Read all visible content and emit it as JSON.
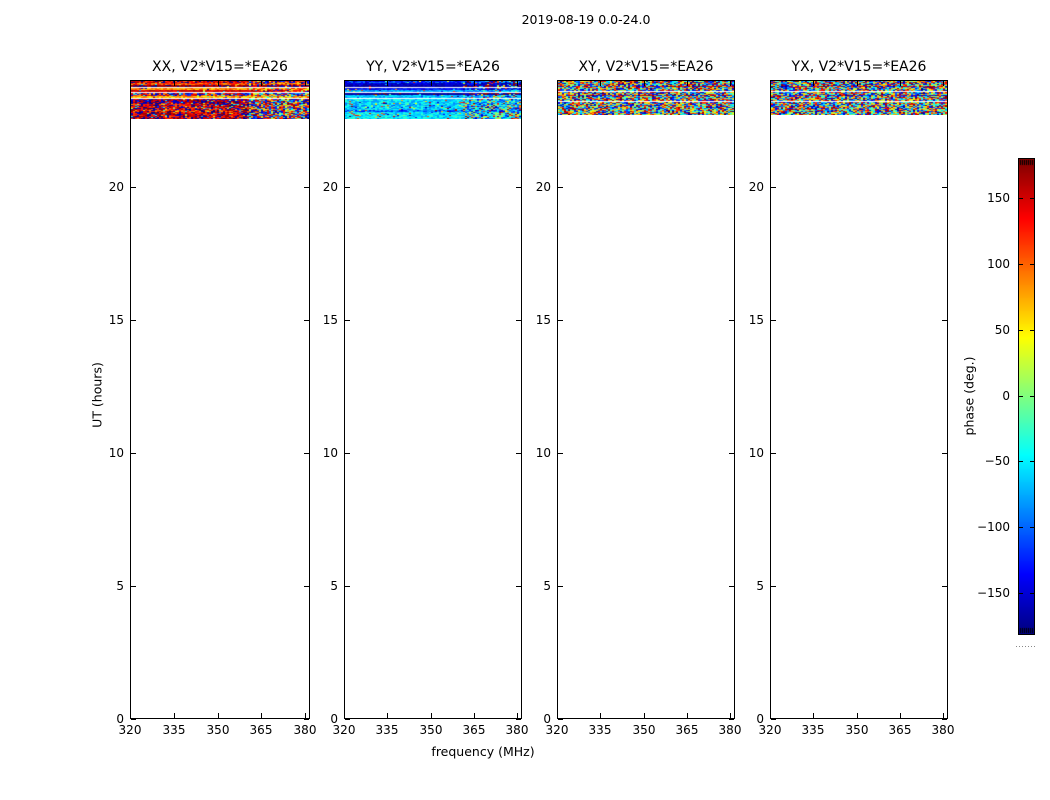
{
  "figure": {
    "title": "2019-08-19 0.0-24.0"
  },
  "axes": {
    "xlabel": "frequency (MHz)",
    "ylabel": "UT (hours)",
    "x_tick_labels": [
      "320",
      "335",
      "350",
      "365",
      "380"
    ],
    "y_tick_labels": [
      "0",
      "5",
      "10",
      "15",
      "20"
    ]
  },
  "colorbar": {
    "label": "phase (deg.)",
    "tick_labels": [
      "150",
      "100",
      "50",
      "0",
      "−50",
      "−100",
      "−150"
    ],
    "tick_values": [
      150,
      100,
      50,
      0,
      -50,
      -100,
      -150
    ],
    "range_deg": [
      -180,
      180
    ],
    "colormap": "jet",
    "key_colors": {
      "plus180": "#800000",
      "plus150": "#d40000",
      "plus100": "#ff6300",
      "plus50": "#ffef00",
      "zero": "#80ff80",
      "minus50": "#00efff",
      "minus100": "#0063ff",
      "minus150": "#0000d4",
      "minus180": "#000080"
    }
  },
  "chart_data": {
    "type": "heatmap",
    "title": "2019-08-19 0.0-24.0",
    "xlabel": "frequency (MHz)",
    "ylabel": "UT (hours)",
    "x_range_mhz": [
      320,
      382
    ],
    "y_range_hours": [
      0,
      24
    ],
    "x_ticks": [
      320,
      335,
      350,
      365,
      380
    ],
    "y_ticks": [
      0,
      5,
      10,
      15,
      20
    ],
    "grid": false,
    "colorbar": {
      "label": "phase (deg.)",
      "range_deg": [
        -180,
        180
      ],
      "ticks": [
        150,
        100,
        50,
        0,
        -50,
        -100,
        -150
      ],
      "colormap": "jet"
    },
    "data_extent_hours": [
      22.5,
      24.0
    ],
    "panels": [
      {
        "id": "XX",
        "title": "XX, V2*V15=*EA26",
        "polarization": "XX",
        "dominant_phase_deg": 155,
        "description": "Horizontal bands of red/orange/yellow phases near +70 to +180 deg with thin white gaps; scattered blue speckles, noisier at high frequencies; data only from UT ~22.5 to 24.",
        "noisy_right": true,
        "bands": [
          {
            "h": 2,
            "p": 150,
            "s": 50,
            "sp": 0.05
          },
          {
            "h": 2,
            "p": 110,
            "s": 35,
            "sp": 0.05
          },
          {
            "h": 2,
            "p": 172,
            "s": 18,
            "sp": 0.03
          },
          {
            "h": 1,
            "p": null
          },
          {
            "h": 2,
            "p": 85,
            "s": 30,
            "sp": 0.04
          },
          {
            "h": 2,
            "p": 150,
            "s": 22,
            "sp": 0.04
          },
          {
            "h": 1,
            "p": null
          },
          {
            "h": 3,
            "p": 165,
            "s": 90,
            "sp": 0.25
          },
          {
            "h": 2,
            "p": 70,
            "s": 35,
            "sp": 0.06
          },
          {
            "h": 1,
            "p": null
          },
          {
            "h": 4,
            "p": 176,
            "s": 45,
            "sp": 0.12
          },
          {
            "h": 7,
            "p": 155,
            "s": 55,
            "sp": 0.15
          },
          {
            "h": 2,
            "p": 130,
            "s": 60,
            "sp": 0.1
          },
          {
            "h": 7,
            "p": 160,
            "s": 50,
            "sp": 0.12
          }
        ]
      },
      {
        "id": "YY",
        "title": "YY, V2*V15=*EA26",
        "polarization": "YY",
        "dominant_phase_deg": -90,
        "description": "Horizontal bands of dark blue / blue / cyan phases near -50 to -170 deg with thin white gaps; noisier with warm speckles at high frequencies; data only from UT ~22.5 to 24.",
        "noisy_right": true,
        "bands": [
          {
            "h": 2,
            "p": -120,
            "s": 40,
            "sp": 0.05
          },
          {
            "h": 2,
            "p": -155,
            "s": 18,
            "sp": 0.03
          },
          {
            "h": 2,
            "p": -165,
            "s": 14,
            "sp": 0.03
          },
          {
            "h": 1,
            "p": null
          },
          {
            "h": 2,
            "p": -130,
            "s": 25,
            "sp": 0.04
          },
          {
            "h": 2,
            "p": -75,
            "s": 22,
            "sp": 0.04
          },
          {
            "h": 1,
            "p": null
          },
          {
            "h": 2,
            "p": -170,
            "s": 12,
            "sp": 0.03
          },
          {
            "h": 3,
            "p": -65,
            "s": 25,
            "sp": 0.06
          },
          {
            "h": 1,
            "p": null
          },
          {
            "h": 4,
            "p": -55,
            "s": 30,
            "sp": 0.08
          },
          {
            "h": 7,
            "p": -60,
            "s": 35,
            "sp": 0.1
          },
          {
            "h": 2,
            "p": -100,
            "s": 40,
            "sp": 0.06
          },
          {
            "h": 7,
            "p": -50,
            "s": 30,
            "sp": 0.1
          }
        ]
      },
      {
        "id": "XY",
        "title": "XY, V2*V15=*EA26",
        "polarization": "XY",
        "dominant_phase_deg": null,
        "description": "Random multicolor phase noise spanning -180 to +180 deg over the whole band, with a couple of darker horizontal stripes and thin white gaps; data only from UT ~22.5 to 24.",
        "noisy_right": false,
        "bands": [
          {
            "h": 3,
            "p": 0,
            "s": 360,
            "sp": 1
          },
          {
            "h": 2,
            "p": 0,
            "s": 360,
            "sp": 1
          },
          {
            "h": 1,
            "p": -175,
            "s": 60,
            "sp": 0.35
          },
          {
            "h": 4,
            "p": 0,
            "s": 360,
            "sp": 1
          },
          {
            "h": 1,
            "p": null
          },
          {
            "h": 3,
            "p": 0,
            "s": 360,
            "sp": 1
          },
          {
            "h": 1,
            "p": -175,
            "s": 60,
            "sp": 0.35
          },
          {
            "h": 5,
            "p": 0,
            "s": 360,
            "sp": 1
          },
          {
            "h": 1,
            "p": null
          },
          {
            "h": 13,
            "p": 0,
            "s": 360,
            "sp": 1
          }
        ]
      },
      {
        "id": "YX",
        "title": "YX, V2*V15=*EA26",
        "polarization": "YX",
        "dominant_phase_deg": null,
        "description": "Random multicolor phase noise spanning -180 to +180 deg over the whole band, with a couple of darker horizontal stripes and thin white gaps; data only from UT ~22.5 to 24.",
        "noisy_right": false,
        "bands": [
          {
            "h": 3,
            "p": 0,
            "s": 360,
            "sp": 1
          },
          {
            "h": 2,
            "p": 0,
            "s": 360,
            "sp": 1
          },
          {
            "h": 1,
            "p": -175,
            "s": 60,
            "sp": 0.35
          },
          {
            "h": 4,
            "p": 0,
            "s": 360,
            "sp": 1
          },
          {
            "h": 1,
            "p": null
          },
          {
            "h": 3,
            "p": 0,
            "s": 360,
            "sp": 1
          },
          {
            "h": 1,
            "p": -175,
            "s": 60,
            "sp": 0.35
          },
          {
            "h": 5,
            "p": 0,
            "s": 360,
            "sp": 1
          },
          {
            "h": 1,
            "p": null
          },
          {
            "h": 13,
            "p": 0,
            "s": 360,
            "sp": 1
          }
        ]
      }
    ]
  }
}
